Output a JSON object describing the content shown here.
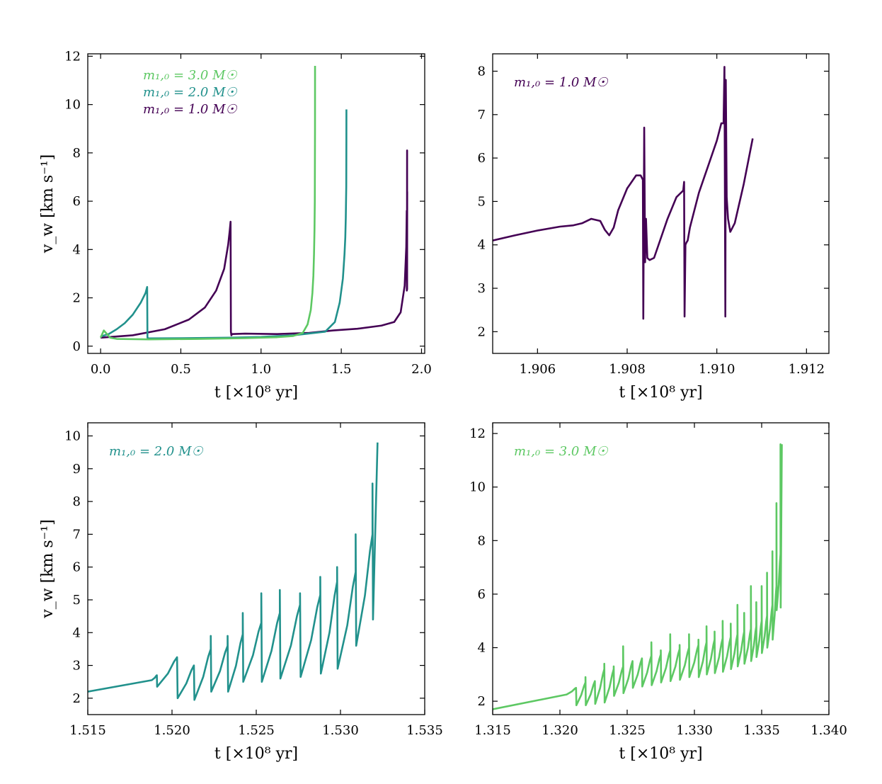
{
  "chart_data": [
    {
      "type": "line",
      "id": "overview",
      "xlabel": "t [×10⁸ yr]",
      "ylabel": "v_w [km s⁻¹]",
      "xlim": [
        -0.08,
        2.02
      ],
      "ylim": [
        -0.3,
        12.1
      ],
      "xticks": [
        0.0,
        0.5,
        1.0,
        1.5,
        2.0
      ],
      "xtick_labels": [
        "0.0",
        "0.5",
        "1.0",
        "1.5",
        "2.0"
      ],
      "yticks": [
        0,
        2,
        4,
        6,
        8,
        10,
        12
      ],
      "ytick_labels": [
        "0",
        "2",
        "4",
        "6",
        "8",
        "10",
        "12"
      ],
      "legend": [
        {
          "label": "m₁,₀ = 3.0 M☉",
          "color": "#5dc863"
        },
        {
          "label": "m₁,₀ = 2.0 M☉",
          "color": "#21918c"
        },
        {
          "label": "m₁,₀ = 1.0 M☉",
          "color": "#440154"
        }
      ],
      "series": [
        {
          "name": "m₁,₀ = 1.0 M☉",
          "color": "#440154",
          "x": [
            0.0,
            0.2,
            0.4,
            0.55,
            0.65,
            0.72,
            0.77,
            0.795,
            0.805,
            0.81,
            0.812,
            0.815,
            0.82,
            0.9,
            1.1,
            1.3,
            1.45,
            1.6,
            1.75,
            1.83,
            1.87,
            1.895,
            1.905,
            1.908,
            1.9084,
            1.909,
            1.9093,
            1.9102,
            1.9103,
            1.9108
          ],
          "y": [
            0.35,
            0.45,
            0.7,
            1.1,
            1.6,
            2.3,
            3.2,
            4.2,
            4.8,
            5.15,
            0.6,
            0.45,
            0.5,
            0.52,
            0.5,
            0.55,
            0.65,
            0.72,
            0.85,
            1.0,
            1.4,
            2.5,
            4.1,
            5.6,
            2.3,
            5.3,
            2.4,
            8.1,
            2.35,
            6.4
          ]
        },
        {
          "name": "m₁,₀ = 2.0 M☉",
          "color": "#21918c",
          "x": [
            0.0,
            0.05,
            0.1,
            0.15,
            0.2,
            0.25,
            0.28,
            0.29,
            0.292,
            0.3,
            0.5,
            0.8,
            1.0,
            1.2,
            1.4,
            1.46,
            1.49,
            1.51,
            1.52,
            1.525,
            1.528,
            1.531,
            1.5318,
            1.532
          ],
          "y": [
            0.4,
            0.5,
            0.7,
            0.95,
            1.3,
            1.8,
            2.2,
            2.45,
            0.35,
            0.32,
            0.33,
            0.35,
            0.38,
            0.45,
            0.6,
            1.0,
            1.8,
            2.8,
            3.8,
            4.5,
            5.3,
            6.6,
            8.5,
            9.8
          ]
        },
        {
          "name": "m₁,₀ = 3.0 M☉",
          "color": "#5dc863",
          "x": [
            0.0,
            0.02,
            0.04,
            0.06,
            0.1,
            0.3,
            0.6,
            0.9,
            1.1,
            1.2,
            1.26,
            1.29,
            1.31,
            1.32,
            1.326,
            1.33,
            1.333,
            1.335,
            1.3362,
            1.3365
          ],
          "y": [
            0.35,
            0.65,
            0.5,
            0.35,
            0.3,
            0.28,
            0.3,
            0.33,
            0.37,
            0.42,
            0.55,
            0.9,
            1.5,
            2.2,
            2.9,
            3.8,
            4.8,
            6.0,
            9.0,
            11.6
          ]
        }
      ]
    },
    {
      "type": "line",
      "id": "m1",
      "xlabel": "t [×10⁸ yr]",
      "ylabel": "",
      "xlim": [
        1.905,
        1.9125
      ],
      "ylim": [
        1.5,
        8.4
      ],
      "xticks": [
        1.906,
        1.908,
        1.91,
        1.912
      ],
      "xtick_labels": [
        "1.906",
        "1.908",
        "1.910",
        "1.912"
      ],
      "yticks": [
        2,
        3,
        4,
        5,
        6,
        7,
        8
      ],
      "ytick_labels": [
        "2",
        "3",
        "4",
        "5",
        "6",
        "7",
        "8"
      ],
      "annotation": {
        "label": "m₁,₀ = 1.0 M☉",
        "color": "#440154"
      },
      "series": [
        {
          "name": "m₁,₀ = 1.0 M☉",
          "color": "#440154",
          "x": [
            1.905,
            1.9055,
            1.906,
            1.9065,
            1.9068,
            1.907,
            1.9072,
            1.9074,
            1.9075,
            1.9076,
            1.9077,
            1.9078,
            1.908,
            1.9082,
            1.9083,
            1.90835,
            1.90836,
            1.90838,
            1.9084,
            1.90842,
            1.90845,
            1.9085,
            1.9086,
            1.9087,
            1.9089,
            1.9091,
            1.90925,
            1.90927,
            1.90928,
            1.9093,
            1.90932,
            1.90935,
            1.9094,
            1.9096,
            1.9098,
            1.91,
            1.9101,
            1.91015,
            1.91017,
            1.91019,
            1.9102,
            1.91022,
            1.91025,
            1.9103,
            1.9104,
            1.9106,
            1.9108
          ],
          "y": [
            4.1,
            4.22,
            4.33,
            4.42,
            4.45,
            4.5,
            4.6,
            4.55,
            4.35,
            4.22,
            4.4,
            4.8,
            5.3,
            5.6,
            5.6,
            5.5,
            2.3,
            6.7,
            3.6,
            4.6,
            3.7,
            3.65,
            3.7,
            4.0,
            4.6,
            5.1,
            5.25,
            5.45,
            2.35,
            4.0,
            4.05,
            4.1,
            4.4,
            5.2,
            5.8,
            6.4,
            6.8,
            6.8,
            8.1,
            2.35,
            7.8,
            5.1,
            4.6,
            4.3,
            4.5,
            5.4,
            6.45
          ]
        }
      ]
    },
    {
      "type": "line",
      "id": "m2",
      "xlabel": "t [×10⁸ yr]",
      "ylabel": "v_w [km s⁻¹]",
      "xlim": [
        1.515,
        1.535
      ],
      "ylim": [
        1.5,
        10.4
      ],
      "xticks": [
        1.515,
        1.52,
        1.525,
        1.53,
        1.535
      ],
      "xtick_labels": [
        "1.515",
        "1.520",
        "1.525",
        "1.530",
        "1.535"
      ],
      "yticks": [
        2,
        3,
        4,
        5,
        6,
        7,
        8,
        9,
        10
      ],
      "ytick_labels": [
        "2",
        "3",
        "4",
        "5",
        "6",
        "7",
        "8",
        "9",
        "10"
      ],
      "annotation": {
        "label": "m₁,₀ = 2.0 M☉",
        "color": "#21918c"
      },
      "series": [
        {
          "name": "m₁,₀ = 2.0 M☉",
          "color": "#21918c",
          "pulses": {
            "baseline_x": [
              1.515,
              1.5188
            ],
            "baseline_y": [
              2.2,
              2.55
            ],
            "t": [
              1.5191,
              1.5203,
              1.5213,
              1.5223,
              1.5233,
              1.5242,
              1.5253,
              1.5264,
              1.5276,
              1.5288,
              1.5298,
              1.5309,
              1.5319
            ],
            "peak": [
              2.7,
              3.25,
              3.0,
              3.5,
              3.6,
              3.95,
              4.3,
              4.6,
              4.85,
              5.15,
              5.55,
              5.85,
              7.0
            ],
            "spike": [
              2.7,
              3.25,
              3.0,
              3.9,
              3.9,
              4.6,
              5.2,
              5.3,
              5.2,
              5.7,
              6.0,
              7.0,
              8.55
            ],
            "trough": [
              2.35,
              2.0,
              1.95,
              2.2,
              2.2,
              2.5,
              2.5,
              2.6,
              2.65,
              2.75,
              2.9,
              3.6,
              4.4
            ],
            "end_x": 1.5322,
            "end_y": 9.8
          }
        }
      ]
    },
    {
      "type": "line",
      "id": "m3",
      "xlabel": "t [×10⁸ yr]",
      "ylabel": "",
      "xlim": [
        1.315,
        1.34
      ],
      "ylim": [
        1.5,
        12.4
      ],
      "xticks": [
        1.315,
        1.32,
        1.325,
        1.33,
        1.335,
        1.34
      ],
      "xtick_labels": [
        "1.315",
        "1.320",
        "1.325",
        "1.330",
        "1.335",
        "1.340"
      ],
      "yticks": [
        2,
        4,
        6,
        8,
        10,
        12
      ],
      "ytick_labels": [
        "2",
        "4",
        "6",
        "8",
        "10",
        "12"
      ],
      "annotation": {
        "label": "m₁,₀ = 3.0 M☉",
        "color": "#5dc863"
      },
      "series": [
        {
          "name": "m₁,₀ = 3.0 M☉",
          "color": "#5dc863",
          "pulses": {
            "baseline_x": [
              1.315,
              1.3205
            ],
            "baseline_y": [
              1.7,
              2.25
            ],
            "t": [
              1.3212,
              1.3219,
              1.3226,
              1.3233,
              1.324,
              1.3247,
              1.3254,
              1.3261,
              1.3268,
              1.3275,
              1.3282,
              1.3289,
              1.3296,
              1.3303,
              1.3309,
              1.3315,
              1.3321,
              1.3327,
              1.3332,
              1.3337,
              1.3342,
              1.3346,
              1.335,
              1.3354,
              1.3358,
              1.3361,
              1.3364
            ],
            "peak": [
              2.5,
              2.7,
              2.75,
              3.2,
              3.2,
              3.3,
              3.5,
              3.6,
              3.7,
              3.75,
              3.9,
              3.95,
              4.0,
              4.1,
              4.2,
              4.3,
              4.35,
              4.4,
              4.5,
              4.6,
              4.7,
              4.8,
              5.0,
              5.2,
              5.6,
              6.3,
              7.5
            ],
            "spike": [
              2.5,
              2.9,
              2.75,
              3.4,
              3.3,
              4.05,
              3.5,
              3.6,
              4.2,
              3.9,
              4.5,
              4.1,
              4.5,
              4.3,
              4.8,
              4.6,
              5.0,
              4.9,
              5.6,
              5.3,
              6.3,
              5.7,
              6.3,
              6.8,
              7.6,
              9.4,
              11.6
            ],
            "trough": [
              1.85,
              1.85,
              1.9,
              1.95,
              2.2,
              2.3,
              2.5,
              2.55,
              2.6,
              2.7,
              2.75,
              2.8,
              2.9,
              2.9,
              3.0,
              3.05,
              3.1,
              3.2,
              3.3,
              3.4,
              3.5,
              3.65,
              3.8,
              4.0,
              4.3,
              5.4,
              5.5
            ],
            "end_x": 1.3365,
            "end_y": 11.6
          }
        }
      ]
    }
  ]
}
